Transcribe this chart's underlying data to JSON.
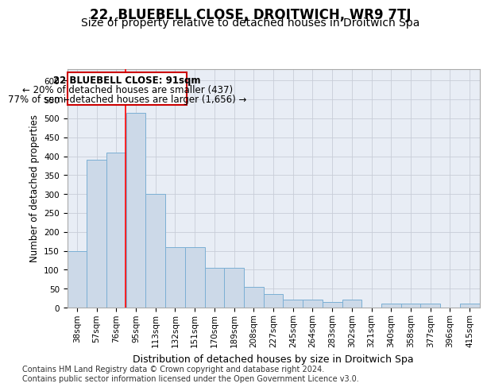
{
  "title": "22, BLUEBELL CLOSE, DROITWICH, WR9 7TJ",
  "subtitle": "Size of property relative to detached houses in Droitwich Spa",
  "xlabel": "Distribution of detached houses by size in Droitwich Spa",
  "ylabel": "Number of detached properties",
  "footer1": "Contains HM Land Registry data © Crown copyright and database right 2024.",
  "footer2": "Contains public sector information licensed under the Open Government Licence v3.0.",
  "categories": [
    "38sqm",
    "57sqm",
    "76sqm",
    "95sqm",
    "113sqm",
    "132sqm",
    "151sqm",
    "170sqm",
    "189sqm",
    "208sqm",
    "227sqm",
    "245sqm",
    "264sqm",
    "283sqm",
    "302sqm",
    "321sqm",
    "340sqm",
    "358sqm",
    "377sqm",
    "396sqm",
    "415sqm"
  ],
  "values": [
    150,
    390,
    410,
    515,
    300,
    160,
    160,
    105,
    105,
    55,
    35,
    20,
    20,
    15,
    20,
    0,
    10,
    10,
    10,
    0,
    10
  ],
  "bar_color": "#ccd9e8",
  "bar_edge_color": "#7bafd4",
  "grid_color": "#c8cdd8",
  "bg_color": "#e8edf5",
  "annotation_box_color": "#ffffff",
  "annotation_border_color": "#cc0000",
  "annotation_text_line1": "22 BLUEBELL CLOSE: 91sqm",
  "annotation_text_line2": "← 20% of detached houses are smaller (437)",
  "annotation_text_line3": "77% of semi-detached houses are larger (1,656) →",
  "red_line_x": 2.47,
  "ylim": [
    0,
    630
  ],
  "yticks": [
    0,
    50,
    100,
    150,
    200,
    250,
    300,
    350,
    400,
    450,
    500,
    550,
    600
  ],
  "title_fontsize": 12,
  "subtitle_fontsize": 10,
  "annotation_fontsize": 8.5,
  "tick_fontsize": 7.5,
  "ylabel_fontsize": 8.5,
  "xlabel_fontsize": 9,
  "footer_fontsize": 7
}
